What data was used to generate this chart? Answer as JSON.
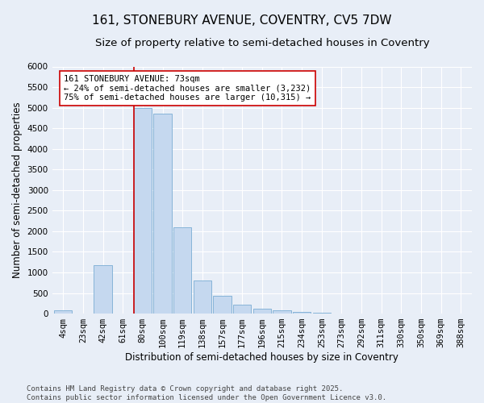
{
  "title_line1": "161, STONEBURY AVENUE, COVENTRY, CV5 7DW",
  "title_line2": "Size of property relative to semi-detached houses in Coventry",
  "xlabel": "Distribution of semi-detached houses by size in Coventry",
  "ylabel": "Number of semi-detached properties",
  "categories": [
    "4sqm",
    "23sqm",
    "42sqm",
    "61sqm",
    "80sqm",
    "100sqm",
    "119sqm",
    "138sqm",
    "157sqm",
    "177sqm",
    "196sqm",
    "215sqm",
    "234sqm",
    "253sqm",
    "273sqm",
    "292sqm",
    "311sqm",
    "330sqm",
    "350sqm",
    "369sqm",
    "388sqm"
  ],
  "values": [
    75,
    0,
    1175,
    0,
    5000,
    4850,
    2100,
    800,
    425,
    225,
    125,
    75,
    50,
    20,
    10,
    0,
    0,
    0,
    0,
    0,
    0
  ],
  "bar_color": "#c5d8ef",
  "bar_edge_color": "#7aadd4",
  "vline_color": "#cc0000",
  "vline_pos": 3.57,
  "annotation_text": "161 STONEBURY AVENUE: 73sqm\n← 24% of semi-detached houses are smaller (3,232)\n75% of semi-detached houses are larger (10,315) →",
  "annotation_box_color": "#ffffff",
  "annotation_box_edge_color": "#cc0000",
  "ylim": [
    0,
    6000
  ],
  "yticks": [
    0,
    500,
    1000,
    1500,
    2000,
    2500,
    3000,
    3500,
    4000,
    4500,
    5000,
    5500,
    6000
  ],
  "background_color": "#e8eef7",
  "grid_color": "#ffffff",
  "footer_text": "Contains HM Land Registry data © Crown copyright and database right 2025.\nContains public sector information licensed under the Open Government Licence v3.0.",
  "title_fontsize": 11,
  "subtitle_fontsize": 9.5,
  "axis_label_fontsize": 8.5,
  "tick_fontsize": 7.5,
  "annotation_fontsize": 7.5,
  "footer_fontsize": 6.5
}
